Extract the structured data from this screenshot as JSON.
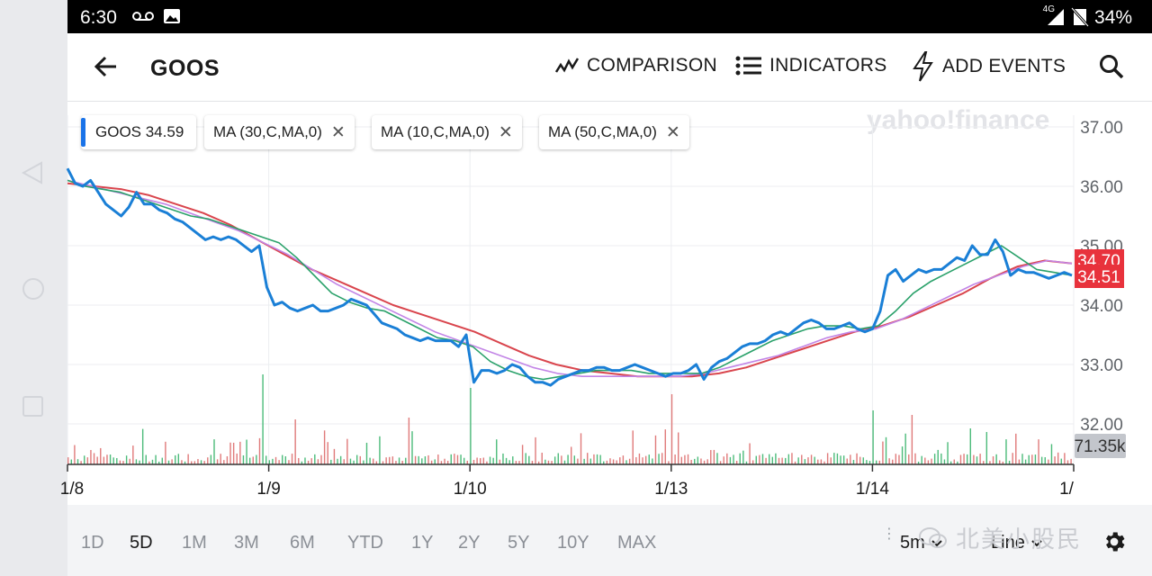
{
  "status_bar": {
    "time": "6:30",
    "network": "4G",
    "battery": "34%",
    "icons": [
      "voicemail-icon",
      "image-icon",
      "signal-icon",
      "no-sim-icon"
    ]
  },
  "app_bar": {
    "back_icon": "arrow-left-icon",
    "symbol": "GOOS",
    "comparison_label": "COMPARISON",
    "indicators_label": "INDICATORS",
    "add_events_label": "ADD EVENTS",
    "search_icon": "search-icon"
  },
  "chips": [
    {
      "label": "GOOS 34.59",
      "removable": false
    },
    {
      "label": "MA (30,C,MA,0)",
      "removable": true
    },
    {
      "label": "MA (10,C,MA,0)",
      "removable": true
    },
    {
      "label": "MA (50,C,MA,0)",
      "removable": true
    }
  ],
  "watermark": "yahoo!finance",
  "colors": {
    "price": "#1a7fd6",
    "ma10": "#2aa16a",
    "ma30": "#c285e6",
    "ma50": "#d9454d",
    "vol_up": "#4cbb7a",
    "vol_down": "#e07a7a",
    "price_badge": "#e8323c",
    "vol_badge": "#c3c6cc"
  },
  "chart_data": {
    "type": "line",
    "ylim": [
      31.5,
      37.3
    ],
    "y_ticks": [
      "37.00",
      "36.00",
      "35.00",
      "34.00",
      "33.00",
      "32.00"
    ],
    "y_tick_values": [
      37,
      36,
      35,
      34,
      33,
      32
    ],
    "x_labels": [
      "1/8",
      "1/9",
      "1/10",
      "1/13",
      "1/14",
      "1/"
    ],
    "x_label_index": [
      0,
      62,
      124,
      186,
      248,
      310
    ],
    "series": [
      {
        "name": "GOOS",
        "values": [
          36.3,
          36.05,
          36.0,
          36.1,
          35.9,
          35.7,
          35.6,
          35.5,
          35.65,
          35.9,
          35.7,
          35.7,
          35.6,
          35.55,
          35.45,
          35.4,
          35.3,
          35.2,
          35.1,
          35.15,
          35.1,
          35.15,
          35.1,
          35.0,
          34.9,
          35.0,
          34.3,
          34.0,
          34.05,
          33.95,
          33.9,
          33.95,
          34.0,
          33.9,
          33.9,
          33.95,
          34.0,
          34.1,
          34.05,
          34.0,
          33.85,
          33.7,
          33.65,
          33.6,
          33.5,
          33.45,
          33.4,
          33.45,
          33.4,
          33.4,
          33.4,
          33.3,
          33.5,
          32.7,
          32.9,
          32.9,
          32.85,
          32.9,
          33.0,
          32.95,
          32.8,
          32.7,
          32.7,
          32.65,
          32.75,
          32.8,
          32.85,
          32.9,
          32.9,
          32.95,
          32.95,
          32.9,
          32.9,
          32.95,
          33.0,
          32.95,
          32.9,
          32.85,
          32.8,
          32.85,
          32.85,
          32.9,
          33.0,
          32.75,
          32.95,
          33.05,
          33.1,
          33.2,
          33.3,
          33.35,
          33.35,
          33.4,
          33.5,
          33.55,
          33.5,
          33.6,
          33.7,
          33.75,
          33.7,
          33.6,
          33.6,
          33.65,
          33.7,
          33.6,
          33.55,
          33.6,
          33.9,
          34.5,
          34.6,
          34.4,
          34.5,
          34.6,
          34.55,
          34.6,
          34.6,
          34.7,
          34.8,
          34.75,
          35.0,
          34.85,
          34.85,
          35.1,
          34.9,
          34.5,
          34.6,
          34.55,
          34.55,
          34.5,
          34.45,
          34.5,
          34.55,
          34.5
        ]
      },
      {
        "name": "MA (10,C,MA,0)",
        "values": [
          36.1,
          36.0,
          35.95,
          35.9,
          35.8,
          35.7,
          35.6,
          35.5,
          35.45,
          35.35,
          35.25,
          35.15,
          35.05,
          34.8,
          34.5,
          34.2,
          34.05,
          33.95,
          33.9,
          33.75,
          33.6,
          33.45,
          33.4,
          33.3,
          33.05,
          32.9,
          32.8,
          32.75,
          32.8,
          32.85,
          32.9,
          32.9,
          32.9,
          32.85,
          32.85,
          32.85,
          32.85,
          32.95,
          33.1,
          33.25,
          33.4,
          33.5,
          33.6,
          33.65,
          33.65,
          33.6,
          33.65,
          33.9,
          34.2,
          34.4,
          34.55,
          34.7,
          34.85,
          35.0,
          34.8,
          34.6,
          34.55,
          34.5
        ]
      },
      {
        "name": "MA (30,C,MA,0)",
        "values": [
          36.1,
          36.0,
          35.9,
          35.8,
          35.7,
          35.55,
          35.4,
          35.25,
          35.05,
          34.85,
          34.6,
          34.35,
          34.15,
          33.95,
          33.75,
          33.55,
          33.4,
          33.25,
          33.1,
          32.95,
          32.85,
          32.8,
          32.8,
          32.8,
          32.8,
          32.8,
          32.85,
          32.95,
          33.05,
          33.15,
          33.3,
          33.45,
          33.55,
          33.6,
          33.75,
          33.95,
          34.15,
          34.35,
          34.5,
          34.65,
          34.75,
          34.7
        ]
      },
      {
        "name": "MA (50,C,MA,0)",
        "values": [
          36.05,
          36.0,
          35.95,
          35.85,
          35.7,
          35.55,
          35.35,
          35.1,
          34.85,
          34.6,
          34.4,
          34.2,
          34.0,
          33.85,
          33.7,
          33.55,
          33.35,
          33.15,
          33.0,
          32.9,
          32.85,
          32.8,
          32.8,
          32.8,
          32.85,
          32.95,
          33.1,
          33.25,
          33.4,
          33.55,
          33.65,
          33.8,
          34.0,
          34.2,
          34.45,
          34.65,
          34.75,
          34.7
        ]
      }
    ],
    "price_badges": [
      "34.70",
      "34.51"
    ],
    "volume_badge": "71.35k"
  },
  "bottom_bar": {
    "ranges": [
      "1D",
      "5D",
      "1M",
      "3M",
      "6M",
      "YTD",
      "1Y",
      "2Y",
      "5Y",
      "10Y",
      "MAX"
    ],
    "selected_range": "5D",
    "interval": "5m",
    "chart_type": "Line",
    "settings_icon": "gear-icon",
    "watermark": "北美小股民"
  }
}
